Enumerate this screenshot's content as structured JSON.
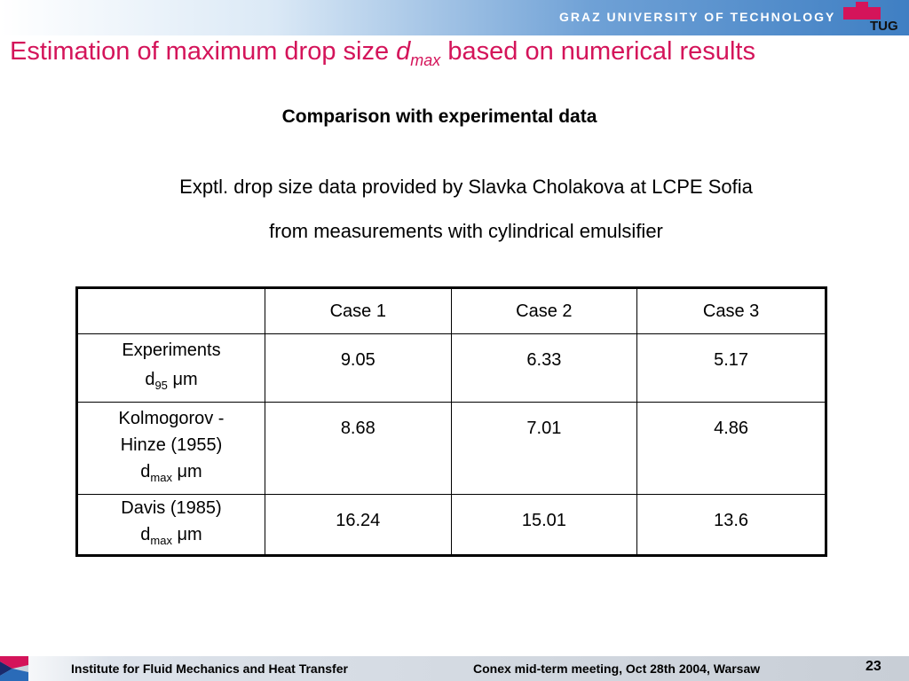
{
  "header": {
    "university": "GRAZ UNIVERSITY OF TECHNOLOGY",
    "logo_text": "TUG",
    "brand_color": "#d4145a",
    "accent_color": "#3f7fc3"
  },
  "title": {
    "prefix": "Estimation of maximum drop size ",
    "var": "d",
    "var_sub": "max",
    "suffix": " based on numerical results"
  },
  "subheading": "Comparison with experimental data",
  "description": {
    "line1": "Exptl. drop size data provided by Slavka Cholakova at LCPE Sofia",
    "line2": "from measurements with cylindrical emulsifier"
  },
  "table": {
    "columns": [
      "",
      "Case 1",
      "Case 2",
      "Case 3"
    ],
    "rows": [
      {
        "label_lines": [
          "Experiments"
        ],
        "symbol": "d",
        "symbol_sub": "95",
        "unit": "μm",
        "values": [
          "9.05",
          "6.33",
          "5.17"
        ]
      },
      {
        "label_lines": [
          "Kolmogorov -",
          "Hinze (1955)"
        ],
        "symbol": "d",
        "symbol_sub": "max",
        "unit": "μm",
        "values": [
          "8.68",
          "7.01",
          "4.86"
        ]
      },
      {
        "label_lines": [
          "Davis (1985)"
        ],
        "symbol": "d",
        "symbol_sub": "max",
        "unit": "μm",
        "values": [
          "16.24",
          "15.01",
          "13.6"
        ]
      }
    ]
  },
  "footer": {
    "institute": "Institute for Fluid Mechanics and Heat Transfer",
    "meeting": "Conex mid-term meeting, Oct 28th 2004, Warsaw",
    "page_number": "23"
  }
}
